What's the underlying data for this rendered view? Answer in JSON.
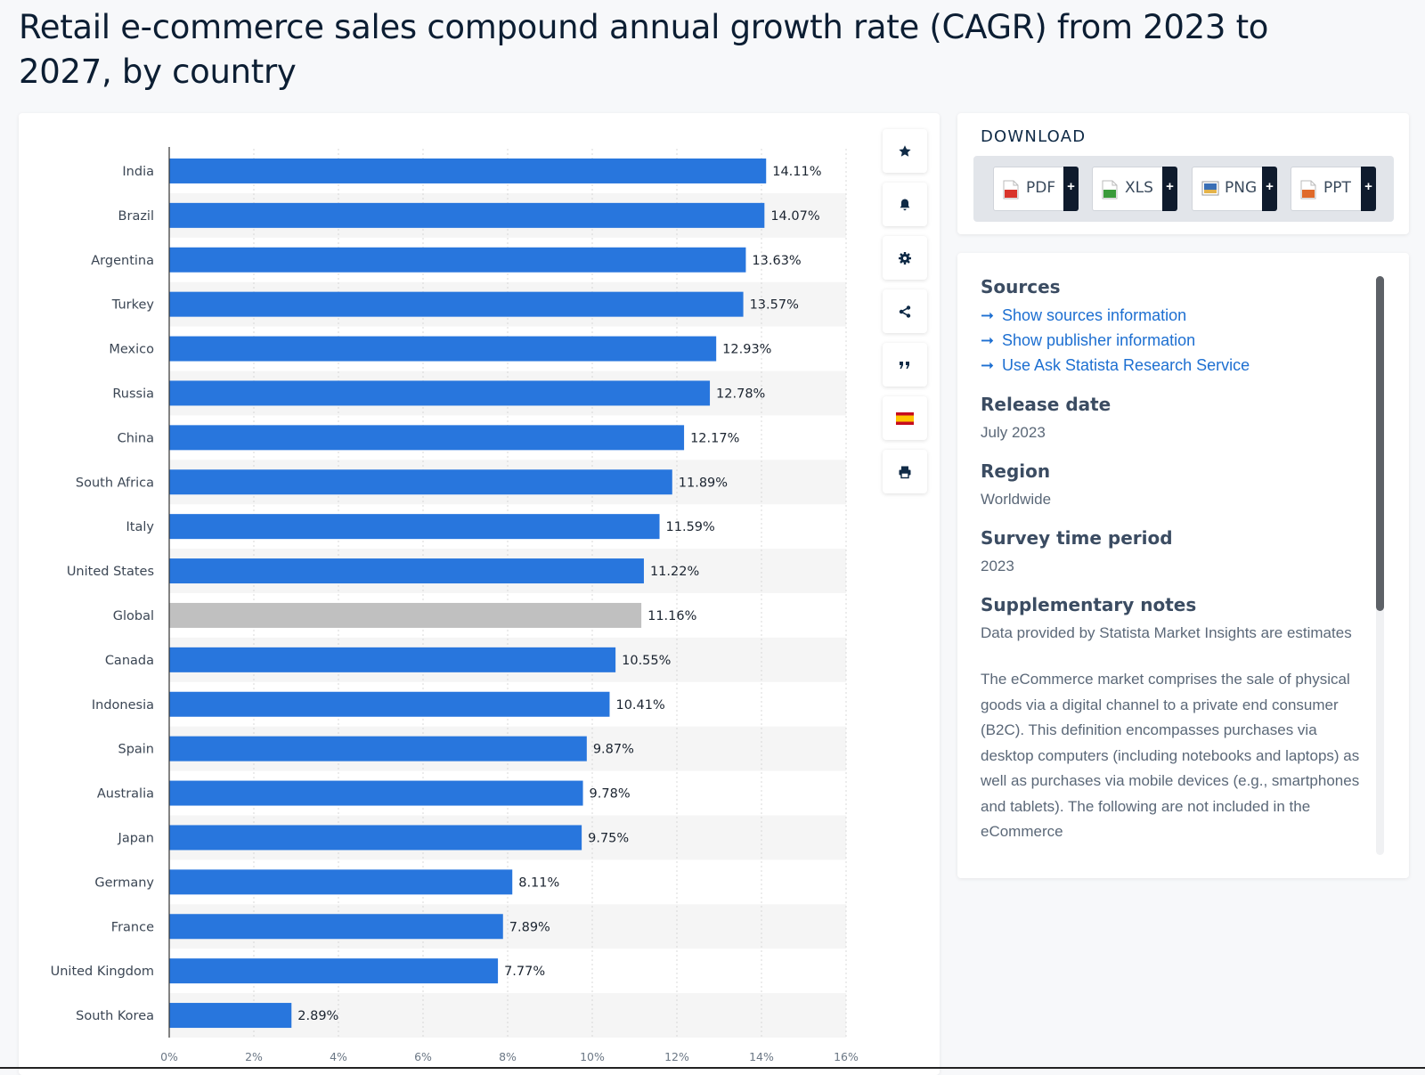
{
  "page": {
    "title": "Retail e-commerce sales compound annual growth rate (CAGR) from 2023 to 2027, by country"
  },
  "chart_data": {
    "type": "bar",
    "orientation": "horizontal",
    "title": "",
    "xlabel": "",
    "ylabel": "",
    "xlim": [
      0,
      16
    ],
    "x_ticks": [
      "0%",
      "2%",
      "4%",
      "6%",
      "8%",
      "10%",
      "12%",
      "14%",
      "16%"
    ],
    "grid": true,
    "categories": [
      "India",
      "Brazil",
      "Argentina",
      "Turkey",
      "Mexico",
      "Russia",
      "China",
      "South Africa",
      "Italy",
      "United States",
      "Global",
      "Canada",
      "Indonesia",
      "Spain",
      "Australia",
      "Japan",
      "Germany",
      "France",
      "United Kingdom",
      "South Korea"
    ],
    "values": [
      14.11,
      14.07,
      13.63,
      13.57,
      12.93,
      12.78,
      12.17,
      11.89,
      11.59,
      11.22,
      11.16,
      10.55,
      10.41,
      9.87,
      9.78,
      9.75,
      8.11,
      7.89,
      7.77,
      2.89
    ],
    "value_labels": [
      "14.11%",
      "14.07%",
      "13.63%",
      "13.57%",
      "12.93%",
      "12.78%",
      "12.17%",
      "11.89%",
      "11.59%",
      "11.22%",
      "11.16%",
      "10.55%",
      "10.41%",
      "9.87%",
      "9.78%",
      "9.75%",
      "8.11%",
      "7.89%",
      "7.77%",
      "2.89%"
    ],
    "highlight_category": "Global",
    "colors": {
      "bar": "#2876dd",
      "highlight": "#c0c0c0",
      "band": "#f5f5f5",
      "grid": "#d8d8d8"
    }
  },
  "toolbar": {
    "icons": [
      "star-icon",
      "bell-icon",
      "gear-icon",
      "share-icon",
      "quote-icon",
      "flag-icon",
      "print-icon"
    ]
  },
  "download": {
    "title": "DOWNLOAD",
    "buttons": [
      {
        "label": "PDF",
        "plus": "+",
        "icon_color": "#d9342b"
      },
      {
        "label": "XLS",
        "plus": "+",
        "icon_color": "#3a9b3a"
      },
      {
        "label": "PNG",
        "plus": "+",
        "icon_color": "#3a6fb5"
      },
      {
        "label": "PPT",
        "plus": "+",
        "icon_color": "#e06a2a"
      }
    ]
  },
  "info": {
    "sources_heading": "Sources",
    "links": [
      "Show sources information",
      "Show publisher information",
      "Use Ask Statista Research Service"
    ],
    "release_heading": "Release date",
    "release_value": "July 2023",
    "region_heading": "Region",
    "region_value": "Worldwide",
    "period_heading": "Survey time period",
    "period_value": "2023",
    "notes_heading": "Supplementary notes",
    "notes_value": "Data provided by Statista Market Insights are estimates",
    "description": "The eCommerce market comprises the sale of physical goods via a digital channel to a private end consumer (B2C). This definition encompasses purchases via desktop computers (including notebooks and laptops) as well as purchases via mobile devices (e.g., smartphones and tablets). The following are not included in the eCommerce"
  }
}
